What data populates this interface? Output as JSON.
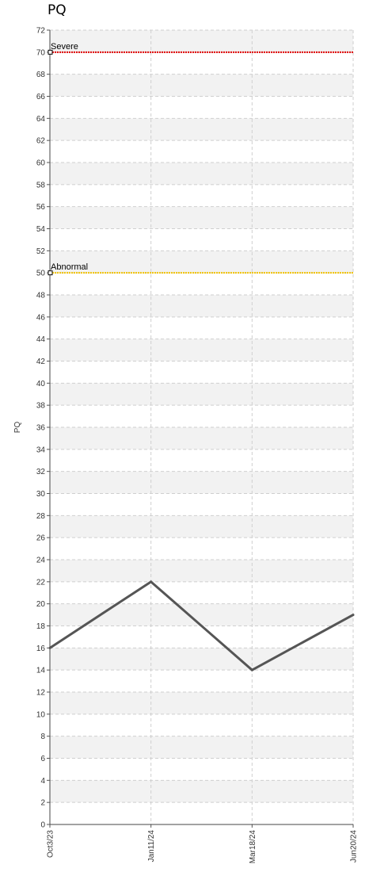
{
  "chart_data": {
    "type": "line",
    "title": "PQ",
    "xlabel": "",
    "ylabel": "PQ",
    "ylim": [
      0,
      72
    ],
    "ytick_step": 2,
    "grid": true,
    "categories": [
      "Oct3/23",
      "Jan11/24",
      "Mar18/24",
      "Jun20/24"
    ],
    "series": [
      {
        "values": [
          16,
          22,
          14,
          19
        ],
        "color": "#555555"
      }
    ],
    "thresholds": [
      {
        "label": "Severe",
        "value": 70,
        "color": "#e00000"
      },
      {
        "label": "Abnormal",
        "value": 50,
        "color": "#f2c200"
      }
    ]
  }
}
